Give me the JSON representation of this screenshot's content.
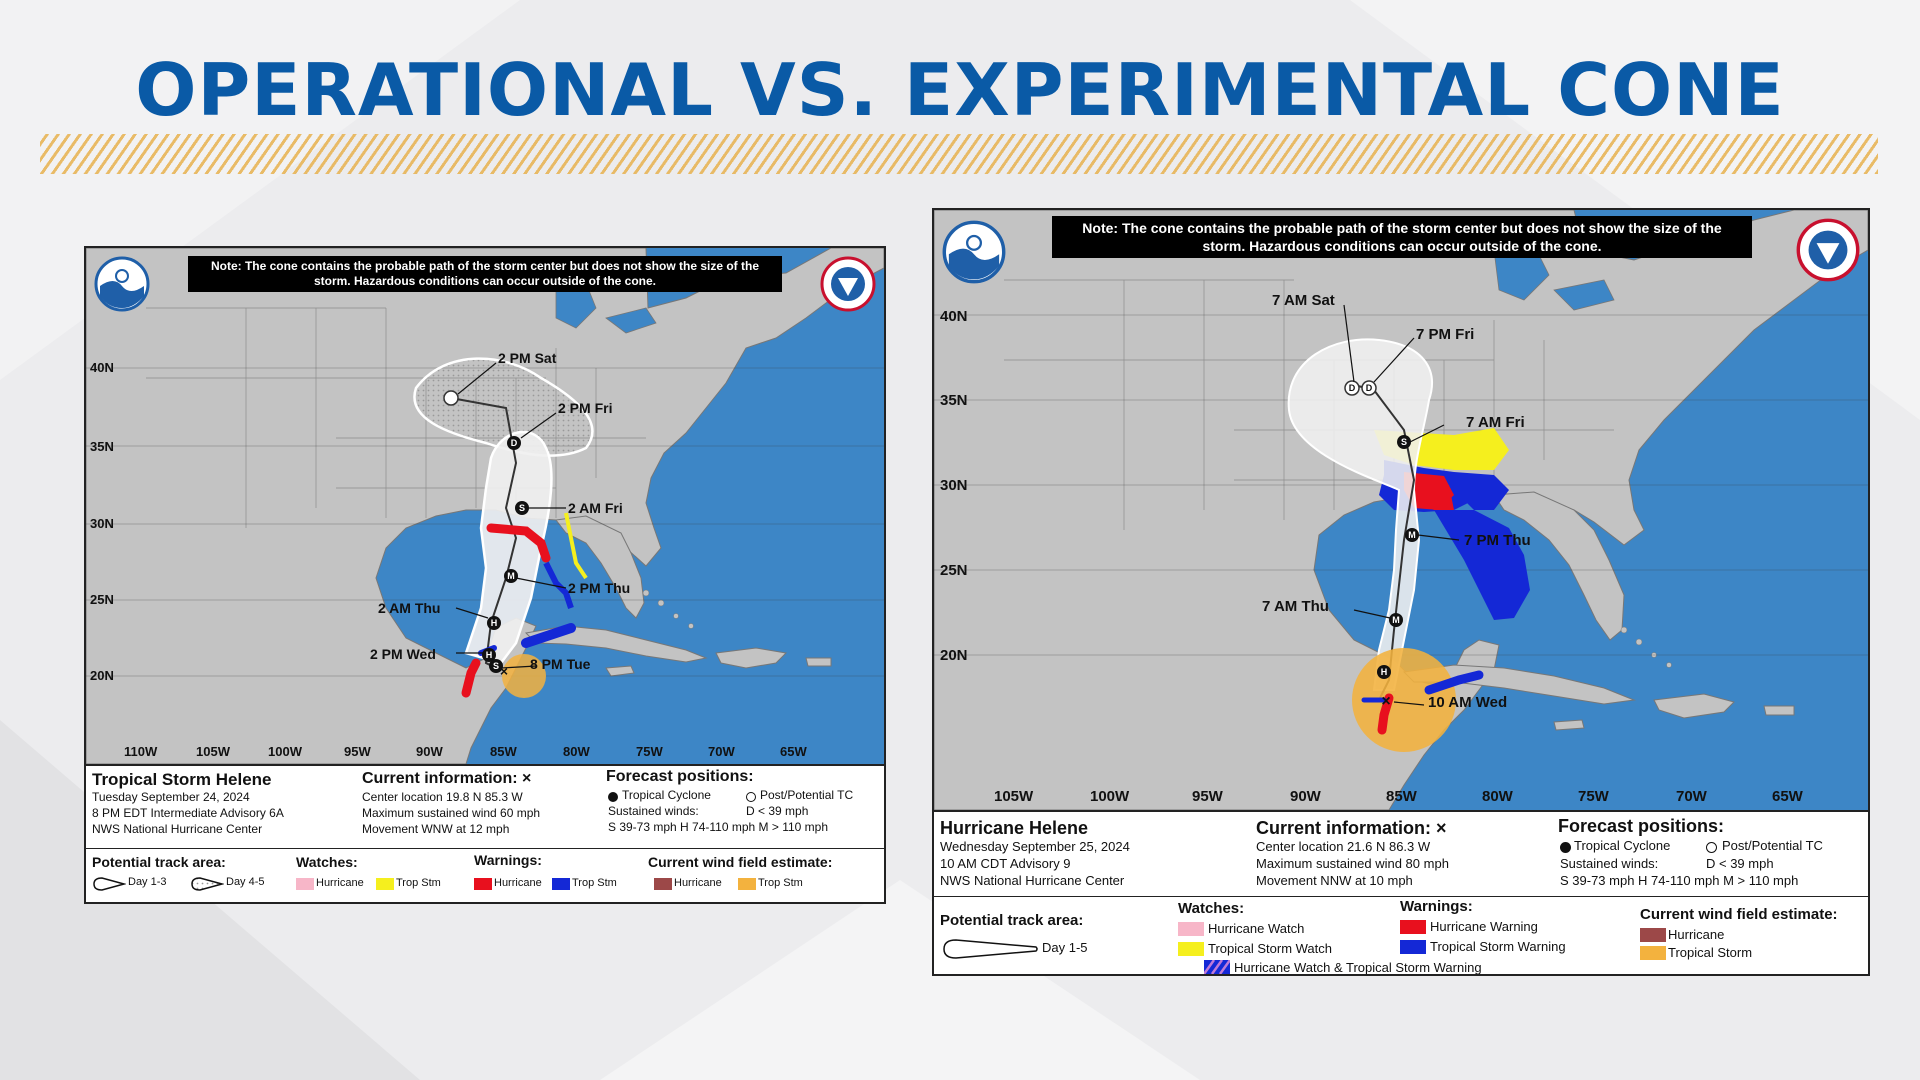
{
  "title": "OPERATIONAL VS. EXPERIMENTAL CONE",
  "note": "Note: The cone contains the probable path of the storm center but does not show the size of the storm. Hazardous conditions can occur outside of the cone.",
  "left_map": {
    "lat_labels": [
      "40N",
      "35N",
      "30N",
      "25N",
      "20N"
    ],
    "lon_labels": [
      "110W",
      "105W",
      "100W",
      "95W",
      "90W",
      "85W",
      "80W",
      "75W",
      "70W",
      "65W"
    ],
    "forecast_labels": [
      "2 PM Sat",
      "2 PM Fri",
      "2 AM Fri",
      "2 PM Thu",
      "2 AM Thu",
      "2 PM Wed",
      "8 PM Tue"
    ],
    "storm_name": "Tropical Storm Helene",
    "date": "Tuesday September 24, 2024",
    "advisory": "8 PM EDT Intermediate Advisory 6A",
    "center": "NWS National Hurricane Center",
    "current_info_title": "Current information: ×",
    "center_location": "Center location 19.8 N 85.3 W",
    "max_wind": "Maximum sustained wind 60 mph",
    "movement": "Movement WNW at 12 mph",
    "forecast_title": "Forecast positions:",
    "tc": "Tropical Cyclone",
    "post_tc": "Post/Potential TC",
    "sustained": "Sustained winds:",
    "d_speed": "D < 39 mph",
    "speeds": "S 39-73 mph   H 74-110 mph   M > 110 mph",
    "track_area": "Potential track area:",
    "day13": "Day 1-3",
    "day45": "Day 4-5",
    "watches": "Watches:",
    "warnings": "Warnings:",
    "wind_field": "Current wind field estimate:",
    "hurricane": "Hurricane",
    "trop_stm": "Trop Stm"
  },
  "right_map": {
    "lat_labels": [
      "40N",
      "35N",
      "30N",
      "25N",
      "20N"
    ],
    "lon_labels": [
      "105W",
      "100W",
      "95W",
      "90W",
      "85W",
      "80W",
      "75W",
      "70W",
      "65W"
    ],
    "forecast_labels": [
      "7 AM Sat",
      "7 PM Fri",
      "7 AM Fri",
      "7 PM Thu",
      "7 AM Thu",
      "10 AM Wed"
    ],
    "storm_name": "Hurricane Helene",
    "date": "Wednesday September 25, 2024",
    "advisory": "10 AM CDT Advisory 9",
    "center": "NWS National Hurricane Center",
    "current_info_title": "Current information: ×",
    "center_location": "Center location 21.6 N 86.3 W",
    "max_wind": "Maximum sustained wind 80 mph",
    "movement": "Movement NNW at 10 mph",
    "forecast_title": "Forecast positions:",
    "tc": "Tropical Cyclone",
    "post_tc": "Post/Potential TC",
    "sustained": "Sustained winds:",
    "d_speed": "D < 39 mph",
    "speeds": "S 39-73 mph   H 74-110 mph   M > 110 mph",
    "track_area": "Potential track area:",
    "day15": "Day 1-5",
    "watches": "Watches:",
    "hurricane_watch": "Hurricane Watch",
    "ts_watch": "Tropical Storm Watch",
    "hw_tsw": "Hurricane Watch & Tropical Storm Warning",
    "warnings": "Warnings:",
    "hurricane_warning": "Hurricane Warning",
    "ts_warning": "Tropical Storm Warning",
    "wind_field": "Current wind field estimate:",
    "hurricane": "Hurricane",
    "tropical_storm": "Tropical Storm"
  },
  "colors": {
    "title": "#0a5aa6",
    "ocean": "#3d86c6",
    "land": "#c3c3c3",
    "hurricane_warning": "#e8101e",
    "ts_warning": "#1428d6",
    "ts_watch": "#f5ef1e",
    "hurricane_watch": "#f7b6c8",
    "hurricane_wind": "#9c4848",
    "ts_wind": "#f3b23e"
  }
}
